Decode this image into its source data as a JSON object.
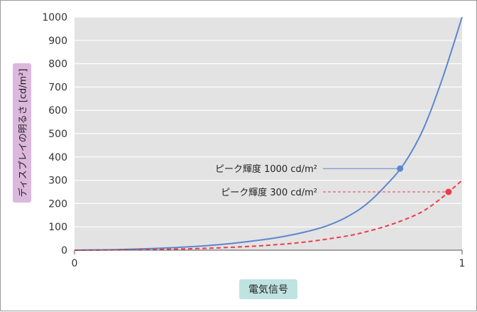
{
  "chart_data": {
    "type": "line",
    "xlabel": "電気信号",
    "ylabel": "ディスプレイの明るさ [cd/m²]",
    "xlim": [
      0,
      1
    ],
    "ylim": [
      0,
      1000
    ],
    "x_ticks": [
      "0",
      "1"
    ],
    "y_ticks": [
      "0",
      "100",
      "200",
      "300",
      "400",
      "500",
      "600",
      "700",
      "800",
      "900",
      "1000"
    ],
    "grid": true,
    "series": [
      {
        "color": "#5b87d0",
        "style": "solid",
        "x": [
          0,
          0.1,
          0.2,
          0.3,
          0.4,
          0.5,
          0.55,
          0.6,
          0.65,
          0.7,
          0.75,
          0.8,
          0.85,
          0.9,
          0.95,
          1.0
        ],
        "y": [
          0,
          2,
          7,
          15,
          28,
          48,
          62,
          80,
          104,
          140,
          193,
          272,
          370,
          520,
          740,
          1000
        ]
      },
      {
        "color": "#ef3b49",
        "style": "dashed",
        "x": [
          0,
          0.1,
          0.2,
          0.3,
          0.4,
          0.5,
          0.6,
          0.7,
          0.75,
          0.8,
          0.85,
          0.9,
          0.95,
          1.0
        ],
        "y": [
          0,
          1,
          3,
          6,
          12,
          21,
          36,
          60,
          78,
          101,
          130,
          168,
          228,
          300
        ]
      }
    ],
    "annotations": [
      {
        "text": "ピーク輝度 1000 cd/m²",
        "point": {
          "x": 0.84,
          "y": 350
        },
        "color": "#5b87d0",
        "style": "solid"
      },
      {
        "text": "ピーク輝度 300 cd/m²",
        "point": {
          "x": 0.965,
          "y": 250
        },
        "color": "#ef3b49",
        "style": "dashed"
      }
    ]
  }
}
